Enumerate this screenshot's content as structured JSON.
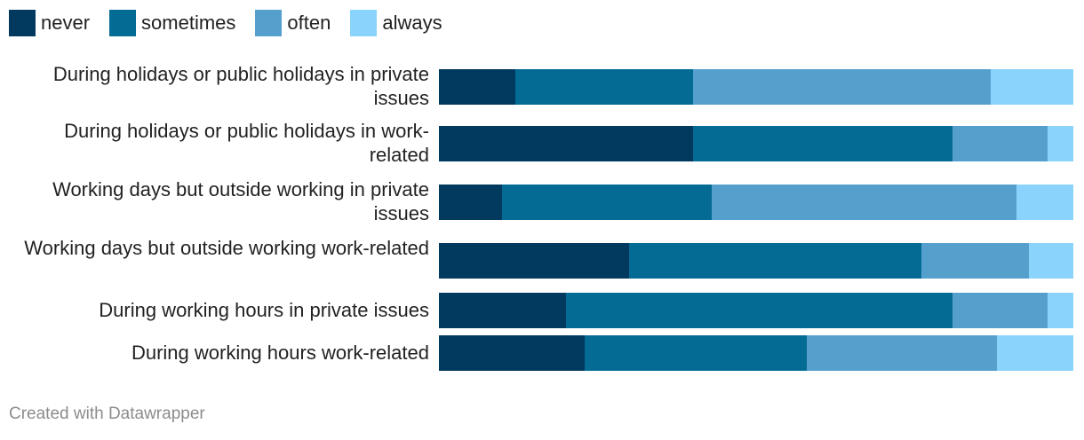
{
  "legend": [
    {
      "label": "never",
      "color": "#023a5f"
    },
    {
      "label": "sometimes",
      "color": "#046b94"
    },
    {
      "label": "often",
      "color": "#559fcc"
    },
    {
      "label": "always",
      "color": "#8ad3fc"
    }
  ],
  "chart_data": {
    "type": "bar",
    "orientation": "horizontal",
    "stacked": true,
    "categories": [
      "During holidays or public holidays in private issues",
      "During holidays or public holidays in work-related",
      "Working days but outside working in private issues",
      "Working days but outside working work-related",
      "During working hours in private issues",
      "During working hours work-related"
    ],
    "series": [
      {
        "name": "never",
        "color": "#023a5f",
        "values": [
          12,
          40,
          10,
          30,
          20,
          23
        ]
      },
      {
        "name": "sometimes",
        "color": "#046b94",
        "values": [
          28,
          41,
          33,
          46,
          61,
          35
        ]
      },
      {
        "name": "often",
        "color": "#559fcc",
        "values": [
          47,
          15,
          48,
          17,
          15,
          30
        ]
      },
      {
        "name": "always",
        "color": "#8ad3fc",
        "values": [
          13,
          4,
          9,
          7,
          4,
          12
        ]
      }
    ],
    "title": "",
    "xlabel": "",
    "ylabel": "",
    "xlim": [
      0,
      100
    ]
  },
  "footer": {
    "credit": "Created with Datawrapper"
  }
}
